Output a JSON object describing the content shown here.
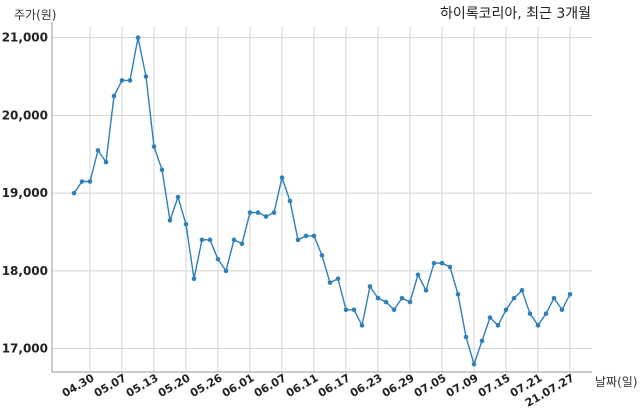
{
  "chart_data": {
    "type": "line",
    "title": "하이록코리아, 최근 3개월",
    "ylabel": "주가(원)",
    "xlabel": "날짜(일)",
    "ylim": [
      16700,
      21150
    ],
    "yticks": [
      17000,
      18000,
      19000,
      20000,
      21000
    ],
    "ytick_labels": [
      "17,000",
      "18,000",
      "19,000",
      "20,000",
      "21,000"
    ],
    "xtick_labels": [
      "04.30",
      "05.07",
      "05.13",
      "05.20",
      "05.26",
      "06.01",
      "06.07",
      "06.11",
      "06.17",
      "06.23",
      "06.29",
      "07.05",
      "07.09",
      "07.15",
      "07.21",
      "21.07.27"
    ],
    "xtick_index": [
      2,
      6,
      10,
      14,
      18,
      22,
      26,
      30,
      34,
      38,
      42,
      46,
      50,
      54,
      58,
      62
    ],
    "grid": true,
    "line_color": "#2f7fb8",
    "series": [
      {
        "values": [
          19000,
          19150,
          19150,
          19550,
          19400,
          20250,
          20450,
          20450,
          21000,
          20500,
          19600,
          19300,
          18650,
          18950,
          18600,
          17900,
          18400,
          18400,
          18150,
          18000,
          18400,
          18350,
          18750,
          18750,
          18700,
          18750,
          19200,
          18900,
          18400,
          18450,
          18450,
          18200,
          17850,
          17900,
          17500,
          17500,
          17300,
          17800,
          17650,
          17600,
          17500,
          17650,
          17600,
          17950,
          17750,
          18100,
          18100,
          18050,
          17700,
          17150,
          16800,
          17100,
          17400,
          17300,
          17500,
          17650,
          17750,
          17450,
          17300,
          17450,
          17650,
          17500,
          17700
        ]
      }
    ]
  }
}
